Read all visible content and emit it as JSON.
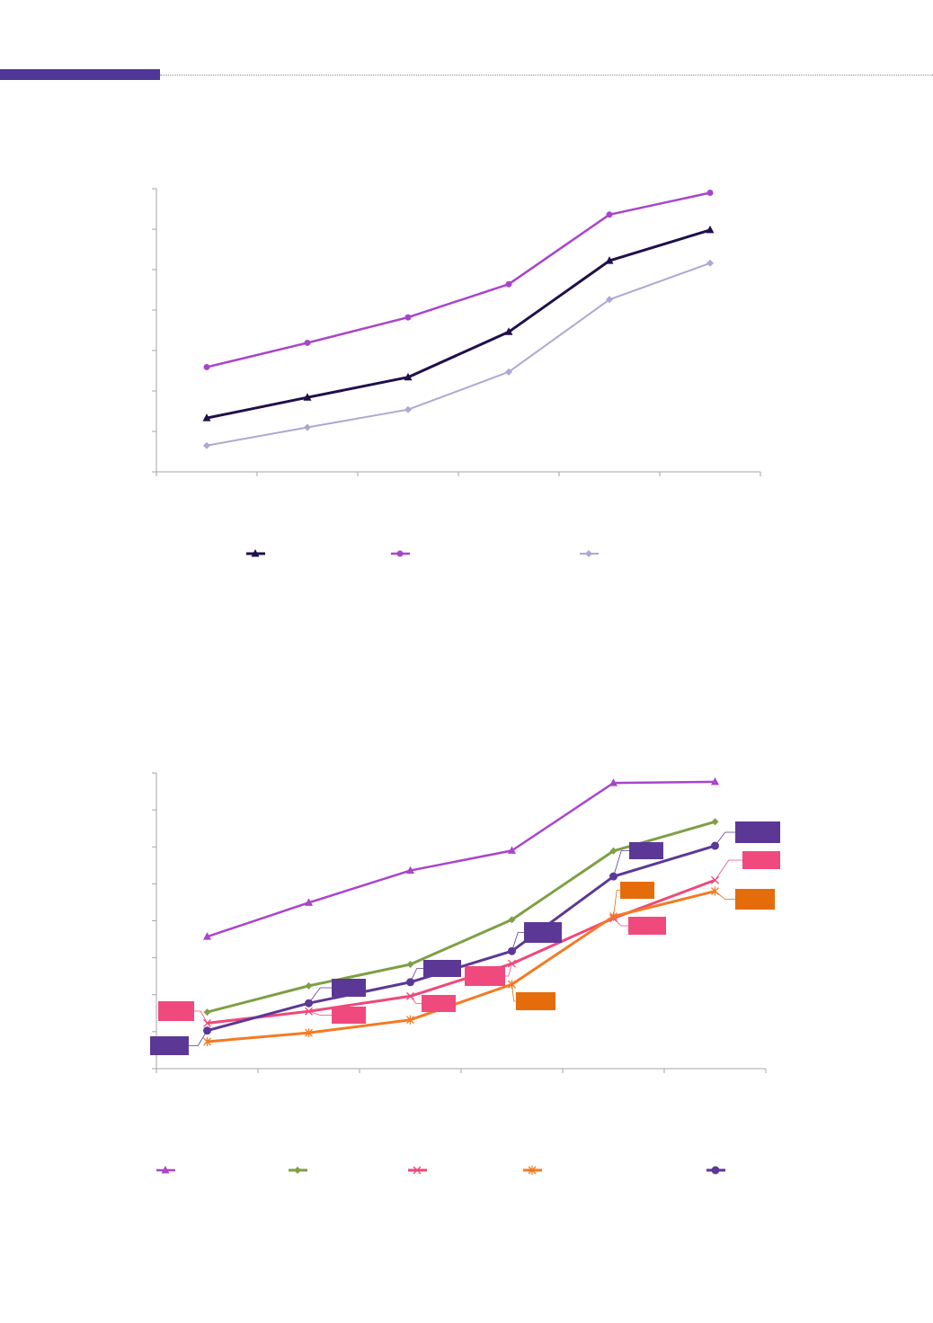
{
  "header": {
    "accent_color": "#4e3796"
  },
  "chart_data": [
    {
      "type": "line",
      "categories": [
        "",
        "",
        "",
        "",
        "",
        ""
      ],
      "ylim": [
        0,
        7
      ],
      "grid": false,
      "legend_position": "bottom",
      "series": [
        {
          "values": [
            1.33,
            1.84,
            2.34,
            3.46,
            5.22,
            5.98
          ],
          "color": "#200f4b",
          "marker": "triangle",
          "width": 3
        },
        {
          "values": [
            2.59,
            3.19,
            3.82,
            4.64,
            6.36,
            6.9
          ],
          "color": "#a944cc",
          "marker": "circle",
          "width": 2.5
        },
        {
          "values": [
            0.65,
            1.1,
            1.54,
            2.47,
            4.26,
            5.16
          ],
          "color": "#b1a6d3",
          "marker": "diamond",
          "width": 2
        }
      ]
    },
    {
      "type": "line",
      "categories": [
        "",
        "",
        "",
        "",
        "",
        ""
      ],
      "ylim": [
        0,
        8
      ],
      "grid": false,
      "legend_position": "bottom",
      "series": [
        {
          "values": [
            3.57,
            4.49,
            5.36,
            5.9,
            7.73,
            7.76
          ],
          "color": "#a944cc",
          "marker": "triangle",
          "width": 2.5
        },
        {
          "values": [
            1.53,
            2.24,
            2.82,
            4.03,
            5.89,
            6.68
          ],
          "color": "#7f9f45",
          "marker": "diamond",
          "width": 3
        },
        {
          "values": [
            1.23,
            1.55,
            1.96,
            2.84,
            4.07,
            5.1
          ],
          "color": "#ef487b",
          "marker": "x",
          "width": 3
        },
        {
          "values": [
            0.73,
            0.97,
            1.32,
            2.28,
            4.12,
            4.8
          ],
          "color": "#f47a23",
          "marker": "star",
          "width": 3
        },
        {
          "values": [
            1.03,
            1.77,
            2.34,
            3.18,
            5.2,
            6.03
          ],
          "color": "#5c3896",
          "marker": "dot",
          "width": 3
        }
      ]
    }
  ]
}
